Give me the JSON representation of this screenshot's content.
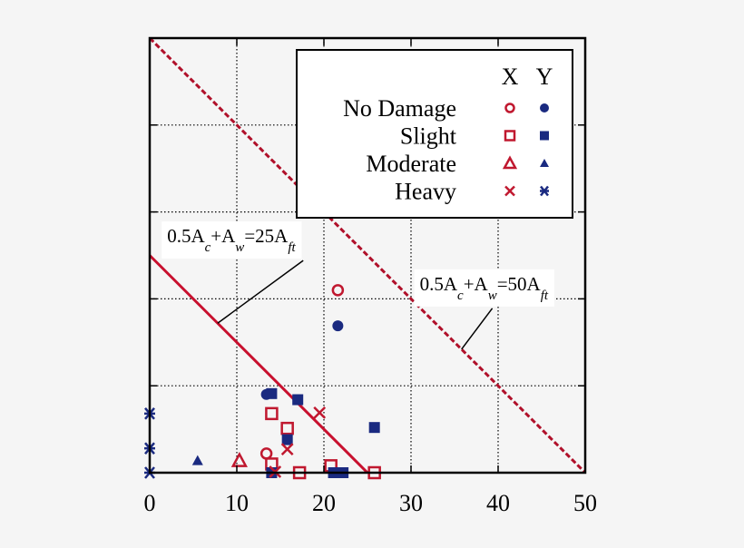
{
  "chart_data": {
    "type": "scatter",
    "title": "",
    "xlabel": "",
    "ylabel": "",
    "xlim": [
      0,
      50
    ],
    "ylim": [
      0,
      50
    ],
    "x_ticks": [
      0,
      10,
      20,
      30,
      40,
      50
    ],
    "y_ticks": [
      0,
      10,
      20,
      30,
      40,
      50
    ],
    "y_tick_labels_visible": false,
    "grid": true,
    "legend": {
      "position": "upper right",
      "column_headers": [
        "X",
        "Y"
      ],
      "rows": [
        {
          "label": "No Damage",
          "x_marker": "open-circle",
          "y_marker": "filled-circle"
        },
        {
          "label": "Slight",
          "x_marker": "open-square",
          "y_marker": "filled-square"
        },
        {
          "label": "Moderate",
          "x_marker": "open-triangle",
          "y_marker": "filled-triangle"
        },
        {
          "label": "Heavy",
          "x_marker": "x-cross",
          "y_marker": "asterisk"
        }
      ]
    },
    "colors": {
      "x_direction": "#c0182f",
      "y_direction": "#1a2a80"
    },
    "lines": [
      {
        "label": "0.5Ac+Aw=25Aft",
        "points": [
          [
            0,
            25
          ],
          [
            25,
            0
          ]
        ],
        "style": "solid",
        "color": "#c8102e"
      },
      {
        "label": "0.5Ac+Aw=50Aft",
        "points": [
          [
            0,
            50
          ],
          [
            50,
            0
          ]
        ],
        "style": "dashed",
        "color": "#b0102a"
      }
    ],
    "annotations": [
      {
        "text_parts": [
          "0.5A",
          "c",
          "+A",
          "w",
          "=25A",
          "ft"
        ],
        "position": [
          2,
          26.5
        ],
        "leader_to": [
          7.8,
          17.2
        ]
      },
      {
        "text_parts": [
          "0.5A",
          "c",
          "+A",
          "w",
          "=50A",
          "ft"
        ],
        "position": [
          31,
          21
        ],
        "leader_to": [
          35.8,
          14.2
        ]
      }
    ],
    "series": [
      {
        "name": "No Damage X",
        "direction": "X",
        "damage": "No Damage",
        "marker": "open-circle",
        "points": [
          [
            21.6,
            21.0
          ],
          [
            13.4,
            2.2
          ]
        ]
      },
      {
        "name": "No Damage Y",
        "direction": "Y",
        "damage": "No Damage",
        "marker": "filled-circle",
        "points": [
          [
            21.6,
            16.9
          ],
          [
            13.4,
            9.0
          ]
        ]
      },
      {
        "name": "Slight X",
        "direction": "X",
        "damage": "Slight",
        "marker": "open-square",
        "points": [
          [
            14.0,
            6.8
          ],
          [
            15.8,
            5.1
          ],
          [
            14.0,
            1.0
          ],
          [
            17.2,
            0
          ],
          [
            20.8,
            0.8
          ],
          [
            25.8,
            0
          ]
        ]
      },
      {
        "name": "Slight Y",
        "direction": "Y",
        "damage": "Slight",
        "marker": "filled-square",
        "points": [
          [
            14.0,
            9.1
          ],
          [
            17.0,
            8.4
          ],
          [
            15.8,
            3.8
          ],
          [
            14.0,
            0
          ],
          [
            25.8,
            5.2
          ],
          [
            21.1,
            0
          ],
          [
            22.2,
            0
          ]
        ]
      },
      {
        "name": "Moderate X",
        "direction": "X",
        "damage": "Moderate",
        "marker": "open-triangle",
        "points": [
          [
            10.3,
            1.4
          ]
        ]
      },
      {
        "name": "Moderate Y",
        "direction": "Y",
        "damage": "Moderate",
        "marker": "filled-triangle",
        "points": [
          [
            5.5,
            1.4
          ]
        ]
      },
      {
        "name": "Heavy X",
        "direction": "X",
        "damage": "Heavy",
        "marker": "x-cross",
        "points": [
          [
            19.5,
            6.9
          ],
          [
            15.8,
            2.7
          ],
          [
            14.4,
            0.1
          ]
        ]
      },
      {
        "name": "Heavy Y",
        "direction": "Y",
        "damage": "Heavy",
        "marker": "asterisk",
        "points": [
          [
            0,
            6.8
          ],
          [
            0,
            2.8
          ],
          [
            0,
            0
          ]
        ]
      }
    ]
  }
}
